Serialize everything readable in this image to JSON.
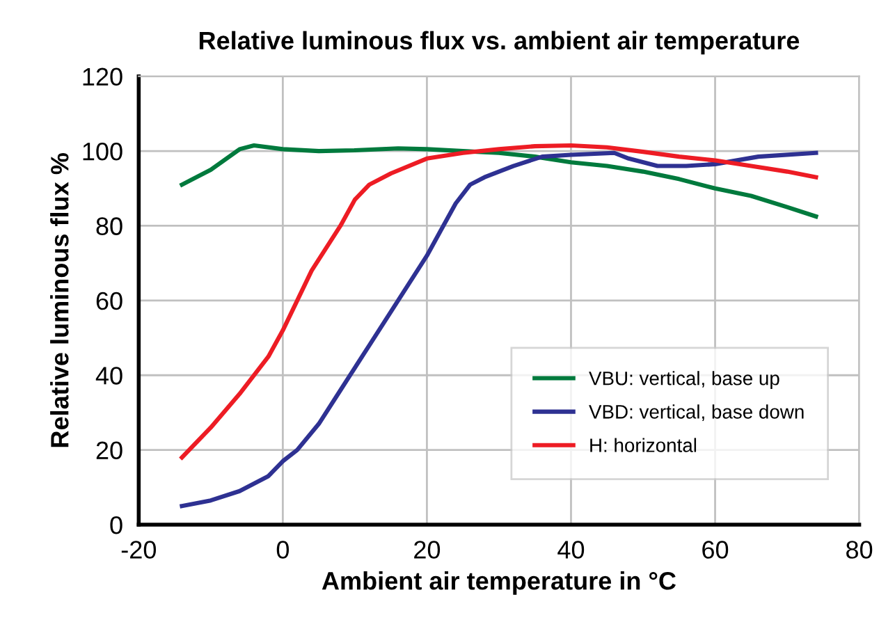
{
  "chart_data": {
    "type": "line",
    "title": "Relative luminous flux vs. ambient air temperature",
    "xlabel": "Ambient air temperature in °C",
    "ylabel": "Relative luminous flux %",
    "xlim": [
      -20,
      80
    ],
    "xticks": [
      -20,
      0,
      20,
      40,
      60,
      80
    ],
    "ylim": [
      0,
      120
    ],
    "yticks": [
      0,
      20,
      40,
      60,
      80,
      100,
      120
    ],
    "grid": true,
    "legend": "bottom right",
    "marker": "none",
    "line_style": "solid",
    "series": [
      {
        "name": "VBU: vertical, base up",
        "color": "#007a3d",
        "x": [
          -14,
          -10,
          -6,
          -4,
          0,
          5,
          10,
          16,
          20,
          25,
          30,
          35,
          40,
          45,
          50,
          55,
          60,
          65,
          70,
          74
        ],
        "values": [
          91,
          95,
          100.5,
          101.5,
          100.5,
          100,
          100.2,
          100.7,
          100.5,
          100,
          99.5,
          98.5,
          97,
          96,
          94.5,
          92.5,
          90,
          88,
          85,
          82.5
        ]
      },
      {
        "name": "VBD: vertical, base down",
        "color": "#2e3192",
        "x": [
          -14,
          -10,
          -6,
          -2,
          0,
          2,
          5,
          8,
          12,
          16,
          20,
          22,
          24,
          26,
          28,
          32,
          36,
          40,
          46,
          48,
          52,
          56,
          60,
          66,
          74
        ],
        "values": [
          5,
          6.5,
          9,
          13,
          17,
          20,
          27,
          36,
          48,
          60,
          72,
          79,
          86,
          91,
          93,
          96,
          98.5,
          99,
          99.5,
          98,
          96,
          96,
          96.5,
          98.5,
          99.5
        ]
      },
      {
        "name": "H: horizontal",
        "color": "#ed1c24",
        "x": [
          -14,
          -10,
          -6,
          -2,
          0,
          2,
          4,
          6,
          8,
          10,
          12,
          15,
          20,
          25,
          30,
          35,
          40,
          45,
          50,
          55,
          60,
          65,
          70,
          74
        ],
        "values": [
          18,
          26,
          35,
          45,
          52,
          60,
          68,
          74,
          80,
          87,
          91,
          94,
          98,
          99.5,
          100.5,
          101.3,
          101.5,
          101,
          99.8,
          98.5,
          97.5,
          96,
          94.5,
          93
        ]
      }
    ]
  }
}
